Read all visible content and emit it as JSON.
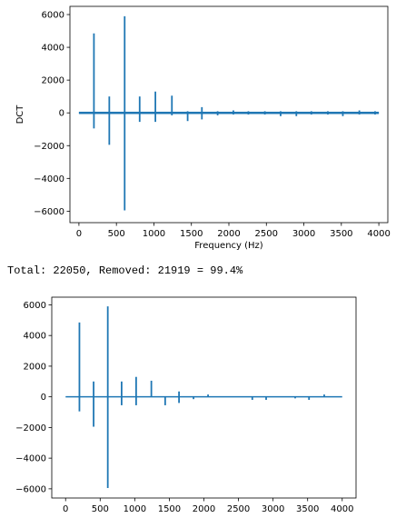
{
  "output_text": "Total: 22050, Removed: 21919 = 99.4%",
  "colors": {
    "line": "#1f77b4",
    "axes": "#000000"
  },
  "chart_data": [
    {
      "type": "line",
      "title": "",
      "xlabel": "Frequency (Hz)",
      "ylabel": "DCT",
      "xlim": [
        -120,
        4120
      ],
      "ylim": [
        -6700,
        6500
      ],
      "xticks": [
        0,
        500,
        1000,
        1500,
        2000,
        2500,
        3000,
        3500,
        4000
      ],
      "xtick_labels": [
        "0",
        "500",
        "1000",
        "1500",
        "2000",
        "2500",
        "3000",
        "3500",
        "4000"
      ],
      "yticks": [
        6000,
        4000,
        2000,
        0,
        -2000,
        -4000,
        -6000
      ],
      "ytick_labels": [
        "6000",
        "4000",
        "2000",
        "0",
        "−2000",
        "−4000",
        "−6000"
      ],
      "grid": false,
      "noise_band": 70,
      "spikes": [
        {
          "x": 200,
          "hi": 4850,
          "lo": -950
        },
        {
          "x": 405,
          "hi": 1000,
          "lo": -1950
        },
        {
          "x": 610,
          "hi": 5900,
          "lo": -5950
        },
        {
          "x": 810,
          "hi": 1000,
          "lo": -550
        },
        {
          "x": 1020,
          "hi": 1300,
          "lo": -550
        },
        {
          "x": 1240,
          "hi": 1050,
          "lo": -150
        },
        {
          "x": 1450,
          "hi": 100,
          "lo": -500
        },
        {
          "x": 1640,
          "hi": 350,
          "lo": -400
        },
        {
          "x": 1850,
          "hi": 100,
          "lo": -150
        },
        {
          "x": 2060,
          "hi": 150,
          "lo": -100
        },
        {
          "x": 2260,
          "hi": 100,
          "lo": -100
        },
        {
          "x": 2480,
          "hi": 100,
          "lo": -100
        },
        {
          "x": 2690,
          "hi": 100,
          "lo": -200
        },
        {
          "x": 2900,
          "hi": 100,
          "lo": -200
        },
        {
          "x": 3100,
          "hi": 100,
          "lo": -100
        },
        {
          "x": 3320,
          "hi": 100,
          "lo": -100
        },
        {
          "x": 3520,
          "hi": 100,
          "lo": -200
        },
        {
          "x": 3740,
          "hi": 150,
          "lo": -100
        },
        {
          "x": 3950,
          "hi": 100,
          "lo": -100
        }
      ]
    },
    {
      "type": "line",
      "title": "",
      "xlabel": "",
      "ylabel": "",
      "xlim": [
        -200,
        4200
      ],
      "ylim": [
        -6600,
        6500
      ],
      "xticks": [
        0,
        500,
        1000,
        1500,
        2000,
        2500,
        3000,
        3500,
        4000
      ],
      "xtick_labels": [
        "0",
        "500",
        "1000",
        "1500",
        "2000",
        "2500",
        "3000",
        "3500",
        "4000"
      ],
      "yticks": [
        6000,
        4000,
        2000,
        0,
        -2000,
        -4000,
        -6000
      ],
      "ytick_labels": [
        "6000",
        "4000",
        "2000",
        "0",
        "−2000",
        "−4000",
        "−6000"
      ],
      "grid": false,
      "noise_band": 0,
      "spikes": [
        {
          "x": 200,
          "hi": 4850,
          "lo": -950
        },
        {
          "x": 405,
          "hi": 1000,
          "lo": -1950
        },
        {
          "x": 610,
          "hi": 5900,
          "lo": -5950
        },
        {
          "x": 810,
          "hi": 1000,
          "lo": -550
        },
        {
          "x": 1020,
          "hi": 1300,
          "lo": -550
        },
        {
          "x": 1240,
          "hi": 1050,
          "lo": 0
        },
        {
          "x": 1440,
          "hi": 0,
          "lo": -550
        },
        {
          "x": 1640,
          "hi": 350,
          "lo": -400
        },
        {
          "x": 1850,
          "hi": 0,
          "lo": -150
        },
        {
          "x": 2060,
          "hi": 150,
          "lo": 0
        },
        {
          "x": 2700,
          "hi": 0,
          "lo": -200
        },
        {
          "x": 2900,
          "hi": 0,
          "lo": -200
        },
        {
          "x": 3320,
          "hi": 0,
          "lo": -100
        },
        {
          "x": 3520,
          "hi": 0,
          "lo": -200
        },
        {
          "x": 3740,
          "hi": 150,
          "lo": 0
        }
      ]
    }
  ]
}
